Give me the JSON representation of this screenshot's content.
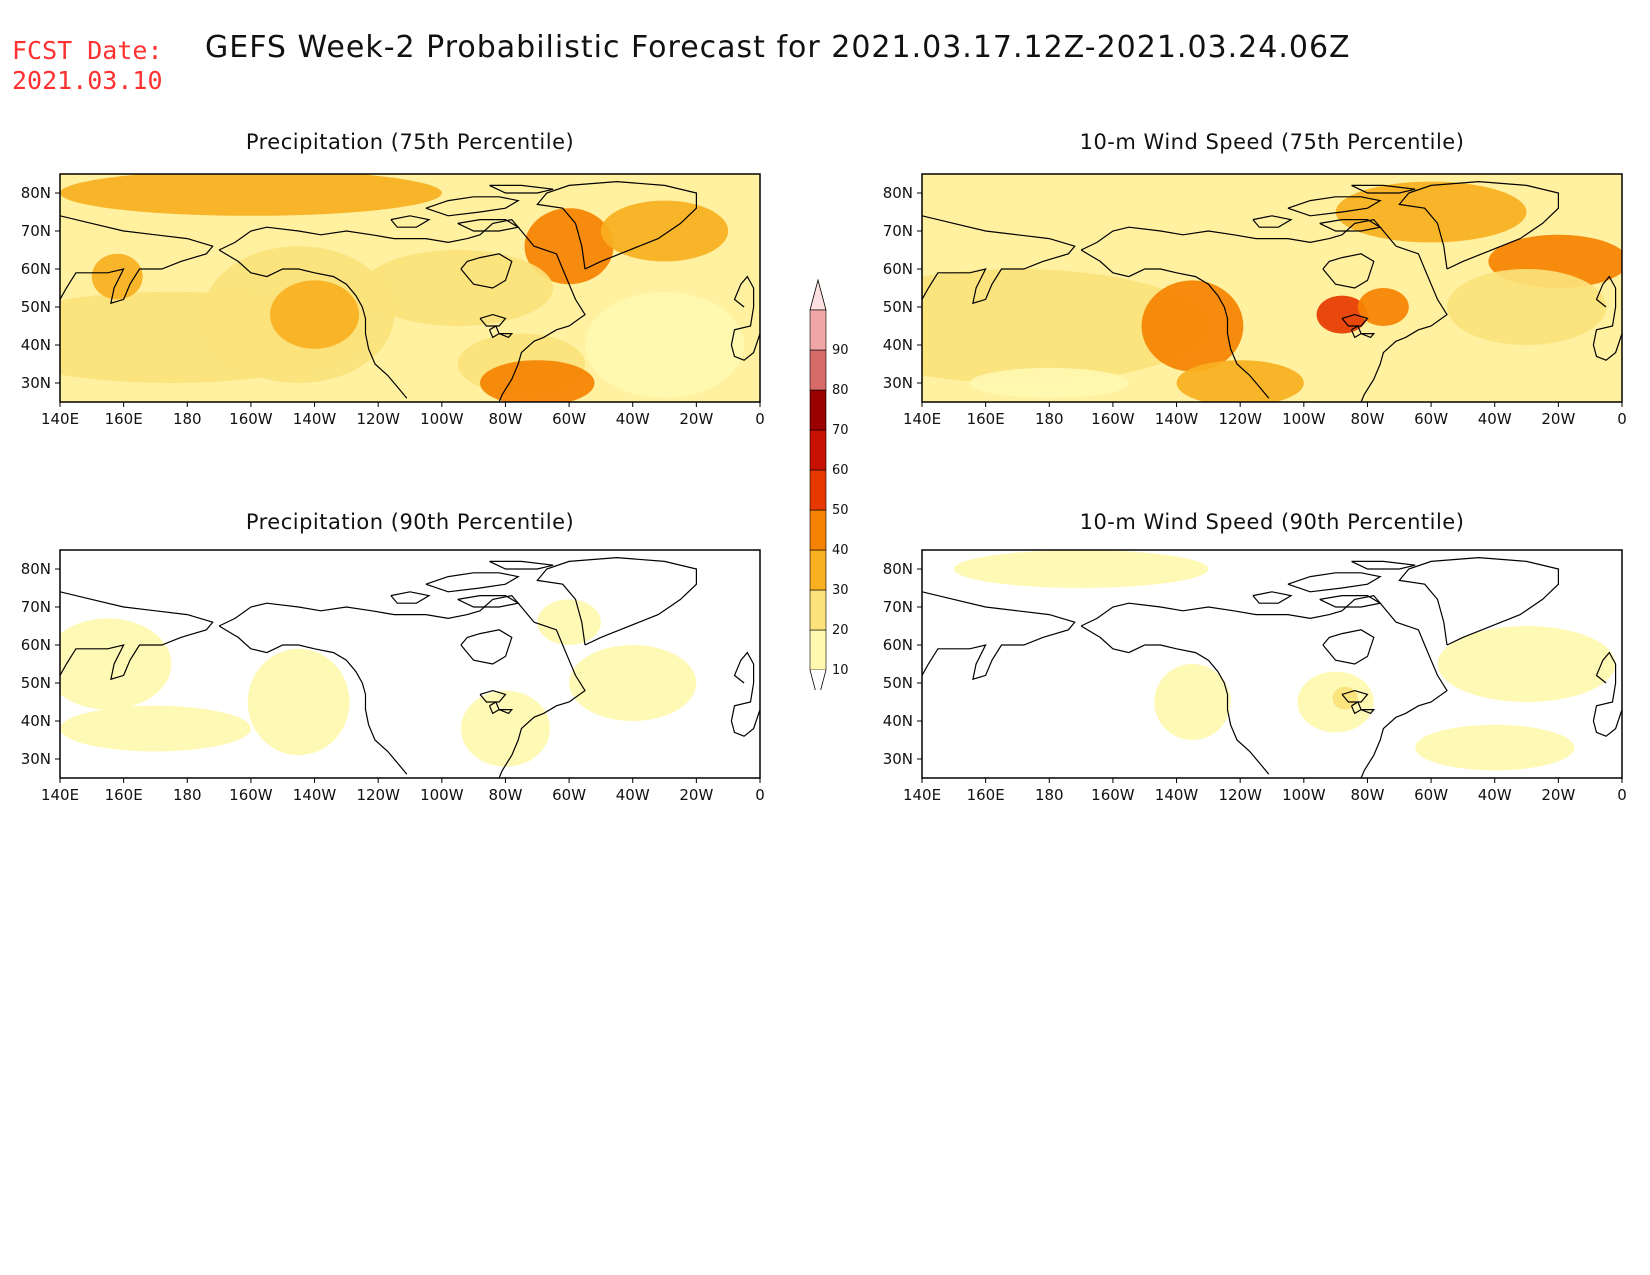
{
  "header": {
    "fcst_label": "FCST Date:",
    "fcst_date": "2021.03.10",
    "title": "GEFS Week-2 Probabilistic Forecast for 2021.03.17.12Z-2021.03.24.06Z"
  },
  "axes": {
    "lon_labels": [
      "140E",
      "160E",
      "180",
      "160W",
      "140W",
      "120W",
      "100W",
      "80W",
      "60W",
      "40W",
      "20W",
      "0"
    ],
    "lat_labels": [
      "80N",
      "70N",
      "60N",
      "50N",
      "40N",
      "30N"
    ]
  },
  "panels": [
    {
      "title": "Precipitation (75th Percentile)",
      "level": "high"
    },
    {
      "title": "10-m Wind Speed (75th Percentile)",
      "level": "high"
    },
    {
      "title": "Precipitation (90th Percentile)",
      "level": "low"
    },
    {
      "title": "10-m Wind Speed (90th Percentile)",
      "level": "low"
    }
  ],
  "colorbar": {
    "levels": [
      "10",
      "20",
      "30",
      "40",
      "50",
      "60",
      "70",
      "80",
      "90"
    ],
    "colors": [
      "#fff9b0",
      "#fbe27a",
      "#f9b020",
      "#f58200",
      "#e63800",
      "#c81000",
      "#9a0000",
      "#d86a6a",
      "#f0a6a6"
    ],
    "top_color": "#fde0e0"
  }
}
